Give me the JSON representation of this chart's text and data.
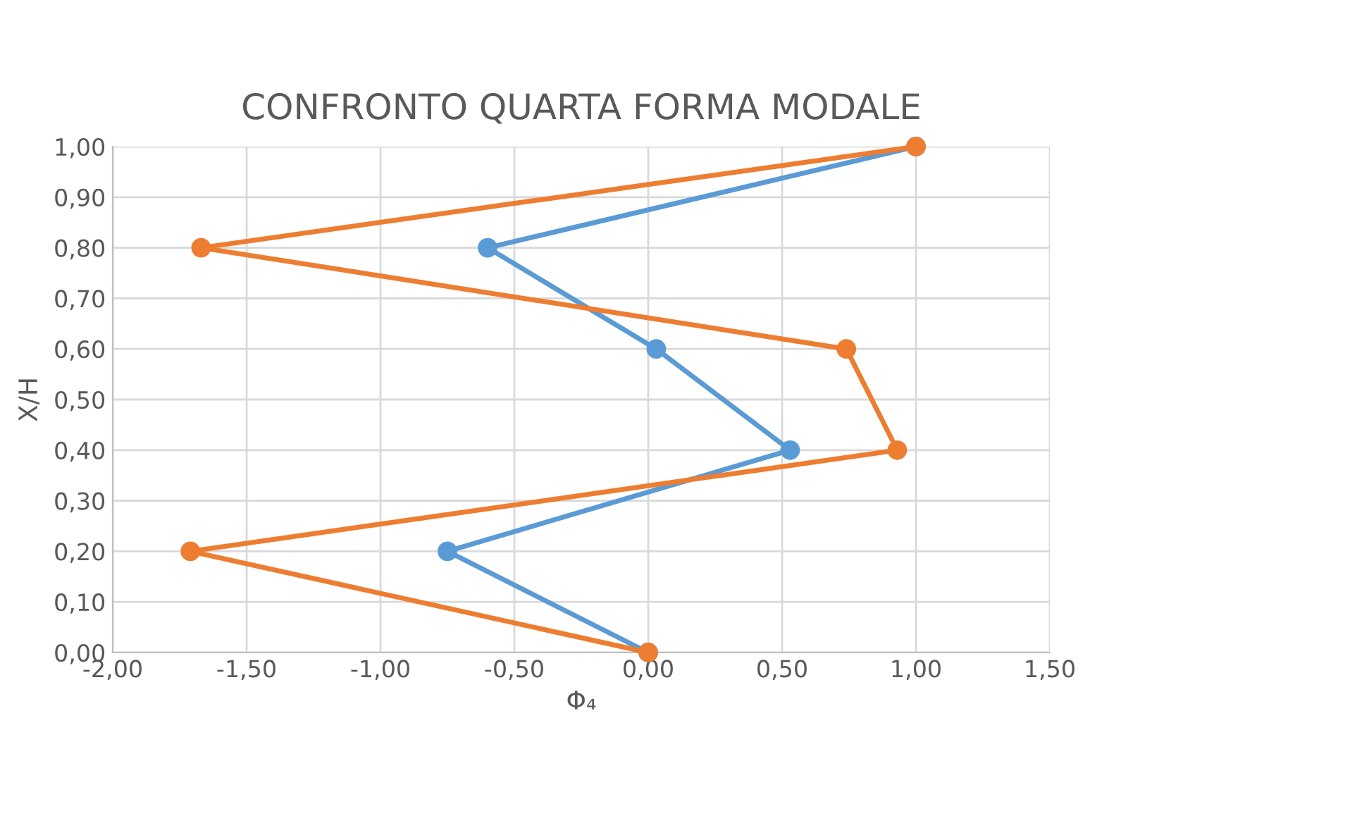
{
  "chart_data": {
    "type": "line",
    "title": "CONFRONTO QUARTA FORMA MODALE",
    "xlabel": "Φ₄",
    "ylabel": "X/H",
    "series": [
      {
        "color": "#5b9bd5",
        "x": [
          0,
          -0.75,
          0.53,
          0.03,
          -0.6,
          1.0
        ],
        "values": [
          0,
          0.2,
          0.4,
          0.6,
          0.8,
          1.0
        ]
      },
      {
        "color": "#ed7d31",
        "x": [
          0,
          -1.71,
          0.93,
          0.74,
          -1.67,
          1.0
        ],
        "values": [
          0,
          0.2,
          0.4,
          0.6,
          0.8,
          1.0
        ]
      }
    ],
    "xlim": [
      -2,
      1.5
    ],
    "ylim": [
      0,
      1
    ],
    "xticks": [
      {
        "value": -2,
        "label": "-2,00"
      },
      {
        "value": -1.5,
        "label": "-1,50"
      },
      {
        "value": -1,
        "label": "-1,00"
      },
      {
        "value": -0.5,
        "label": "-0,50"
      },
      {
        "value": 0,
        "label": "0,00"
      },
      {
        "value": 0.5,
        "label": "0,50"
      },
      {
        "value": 1,
        "label": "1,00"
      },
      {
        "value": 1.5,
        "label": "1,50"
      }
    ],
    "yticks": [
      {
        "value": 0,
        "label": "0,00"
      },
      {
        "value": 0.1,
        "label": "0,10"
      },
      {
        "value": 0.2,
        "label": "0,20"
      },
      {
        "value": 0.3,
        "label": "0,30"
      },
      {
        "value": 0.4,
        "label": "0,40"
      },
      {
        "value": 0.5,
        "label": "0,50"
      },
      {
        "value": 0.6,
        "label": "0,60"
      },
      {
        "value": 0.7,
        "label": "0,70"
      },
      {
        "value": 0.8,
        "label": "0,80"
      },
      {
        "value": 0.9,
        "label": "0,90"
      },
      {
        "value": 1,
        "label": "1,00"
      }
    ],
    "grid": true,
    "marker": "circle",
    "line_style": "solid"
  }
}
